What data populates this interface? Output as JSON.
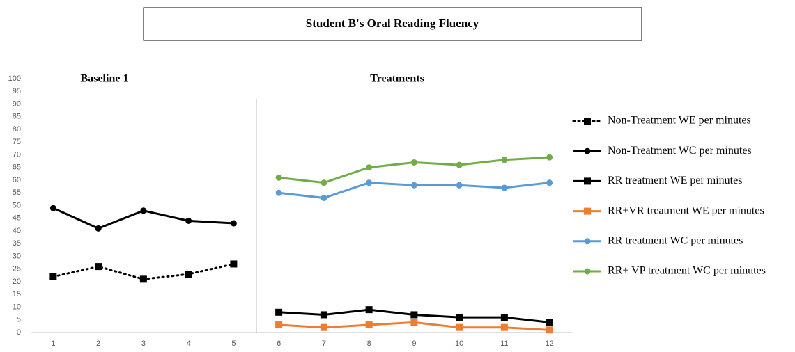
{
  "chart_data": {
    "type": "line",
    "title": "Student B's Oral Reading Fluency",
    "annotations": [
      "Baseline 1",
      "Treatments"
    ],
    "phase_line": 5.5,
    "x": [
      1,
      2,
      3,
      4,
      5,
      6,
      7,
      8,
      9,
      10,
      11,
      12
    ],
    "xlim": [
      0.5,
      12.5
    ],
    "xticks": [
      1,
      2,
      3,
      4,
      5,
      6,
      7,
      8,
      9,
      10,
      11,
      12
    ],
    "ylim": [
      0,
      100
    ],
    "yticks": [
      0,
      5,
      10,
      15,
      20,
      25,
      30,
      35,
      40,
      45,
      50,
      55,
      60,
      65,
      70,
      75,
      80,
      85,
      90,
      95,
      100
    ],
    "grid": false,
    "legend": "right",
    "series": [
      {
        "name": "Non-Treatment WE per minutes",
        "color": "#000000",
        "marker": "square",
        "dash": "dotted",
        "values": [
          22,
          26,
          21,
          23,
          27,
          null,
          null,
          null,
          null,
          null,
          null,
          null
        ]
      },
      {
        "name": "Non-Treatment WC per minutes",
        "color": "#000000",
        "marker": "circle",
        "dash": "solid",
        "values": [
          49,
          41,
          48,
          44,
          43,
          null,
          null,
          null,
          null,
          null,
          null,
          null
        ]
      },
      {
        "name": "RR treatment WE per minutes",
        "color": "#000000",
        "marker": "square",
        "dash": "solid",
        "values": [
          null,
          null,
          null,
          null,
          null,
          8,
          7,
          9,
          7,
          6,
          6,
          4
        ]
      },
      {
        "name": "RR+VR treatment WE per minutes",
        "color": "#ed7d31",
        "marker": "square",
        "dash": "solid",
        "values": [
          null,
          null,
          null,
          null,
          null,
          3,
          2,
          3,
          4,
          2,
          2,
          1
        ]
      },
      {
        "name": "RR treatment WC per minutes",
        "color": "#5b9bd5",
        "marker": "circle",
        "dash": "solid",
        "values": [
          null,
          null,
          null,
          null,
          null,
          55,
          53,
          59,
          58,
          58,
          57,
          59
        ]
      },
      {
        "name": "RR+ VP treatment WC per minutes",
        "color": "#70ad47",
        "marker": "circle",
        "dash": "solid",
        "values": [
          null,
          null,
          null,
          null,
          null,
          61,
          59,
          65,
          67,
          66,
          68,
          69
        ]
      }
    ]
  }
}
